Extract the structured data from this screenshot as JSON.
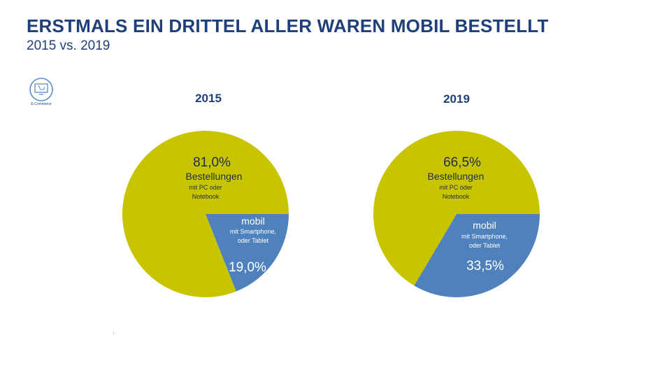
{
  "header": {
    "title": "ERSTMALS EIN DRITTEL ALLER WAREN MOBIL BESTELLT",
    "subtitle": "2015 vs. 2019"
  },
  "badge": {
    "label": "E-Commerce",
    "icon": "monitor-cart-icon"
  },
  "colors": {
    "title": "#1f3f7a",
    "pc": "#c8c400",
    "mobile": "#4f81bd"
  },
  "chart_data": [
    {
      "type": "pie",
      "title": "2015",
      "slices": [
        {
          "value": 81.0,
          "value_label": "81,0%",
          "label": "Bestellungen",
          "sublabel_1": "mit PC oder",
          "sublabel_2": "Notebook",
          "color": "#c8c400"
        },
        {
          "value": 19.0,
          "value_label": "19,0%",
          "label": "mobil",
          "sublabel_1": "mit Smartphone,",
          "sublabel_2": "oder Tablet",
          "color": "#4f81bd"
        }
      ]
    },
    {
      "type": "pie",
      "title": "2019",
      "slices": [
        {
          "value": 66.5,
          "value_label": "66,5%",
          "label": "Bestellungen",
          "sublabel_1": "mit PC oder",
          "sublabel_2": "Notebook",
          "color": "#c8c400"
        },
        {
          "value": 33.5,
          "value_label": "33,5%",
          "label": "mobil",
          "sublabel_1": "mit Smartphone,",
          "sublabel_2": "oder Tablet",
          "color": "#4f81bd"
        }
      ]
    }
  ]
}
